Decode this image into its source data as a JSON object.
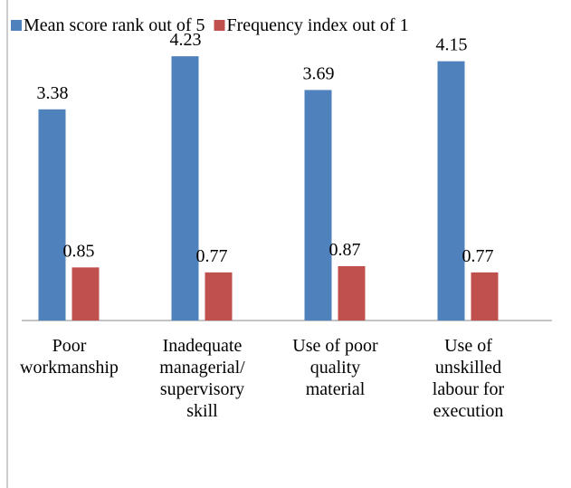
{
  "chart_data": {
    "type": "bar",
    "categories": [
      "Poor workmanship",
      "Inadequate managerial/ supervisory skill",
      "Use of poor quality material",
      "Use of unskilled labour for execution"
    ],
    "series": [
      {
        "name": "Mean score rank out of 5",
        "color": "#4f81bd",
        "values": [
          3.38,
          4.23,
          3.69,
          4.15
        ]
      },
      {
        "name": "Frequency index out of 1",
        "color": "#c0504d",
        "values": [
          0.85,
          0.77,
          0.87,
          0.77
        ]
      }
    ],
    "ylim": [
      0,
      5
    ],
    "legend": "top"
  }
}
